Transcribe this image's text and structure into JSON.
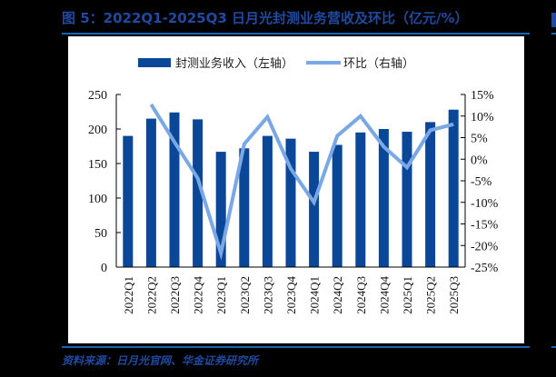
{
  "header": {
    "title": "图 5：2022Q1-2025Q3 日月光封测业务营收及环比（亿元/%）"
  },
  "footer": {
    "source": "资料来源：日月光官网、华金证券研究所"
  },
  "colors": {
    "background": "#000000",
    "panel": "#ffffff",
    "title": "#1f4aa0",
    "rule": "#1565b6",
    "bar": "#0a4799",
    "line": "#7aa7e6",
    "axis": "#000000"
  },
  "chart_data": {
    "type": "bar+line",
    "title": "2022Q1-2025Q3 日月光封测业务营收及环比（亿元/%）",
    "categories": [
      "2022Q1",
      "2022Q2",
      "2022Q3",
      "2022Q4",
      "2023Q1",
      "2023Q2",
      "2023Q3",
      "2023Q4",
      "2024Q1",
      "2024Q2",
      "2024Q3",
      "2024Q4",
      "2025Q1",
      "2025Q2",
      "2025Q3"
    ],
    "series": [
      {
        "name": "封测业务收入（左轴）",
        "type": "bar",
        "axis": "left",
        "values": [
          190,
          215,
          224,
          214,
          167,
          172,
          190,
          186,
          167,
          177,
          195,
          200,
          196,
          210,
          228
        ]
      },
      {
        "name": "环比（右轴）",
        "type": "line",
        "axis": "right",
        "values": [
          null,
          12.7,
          4.0,
          -4.4,
          -21.8,
          3.5,
          9.8,
          -2.2,
          -10.0,
          5.4,
          10.0,
          2.9,
          -1.9,
          6.7,
          8.1
        ]
      }
    ],
    "left_axis": {
      "ylim": [
        0,
        250
      ],
      "ticks": [
        "0",
        "50",
        "100",
        "150",
        "200",
        "250"
      ]
    },
    "right_axis": {
      "ylim": [
        -25,
        15
      ],
      "ticks": [
        "15%",
        "10%",
        "5%",
        "0%",
        "-5%",
        "-10%",
        "-15%",
        "-20%",
        "-25%"
      ]
    },
    "legend": {
      "position": "top",
      "entries": [
        "封测业务收入（左轴）",
        "环比（右轴）"
      ]
    },
    "grid": false,
    "xlabel": "",
    "ylabel": ""
  }
}
